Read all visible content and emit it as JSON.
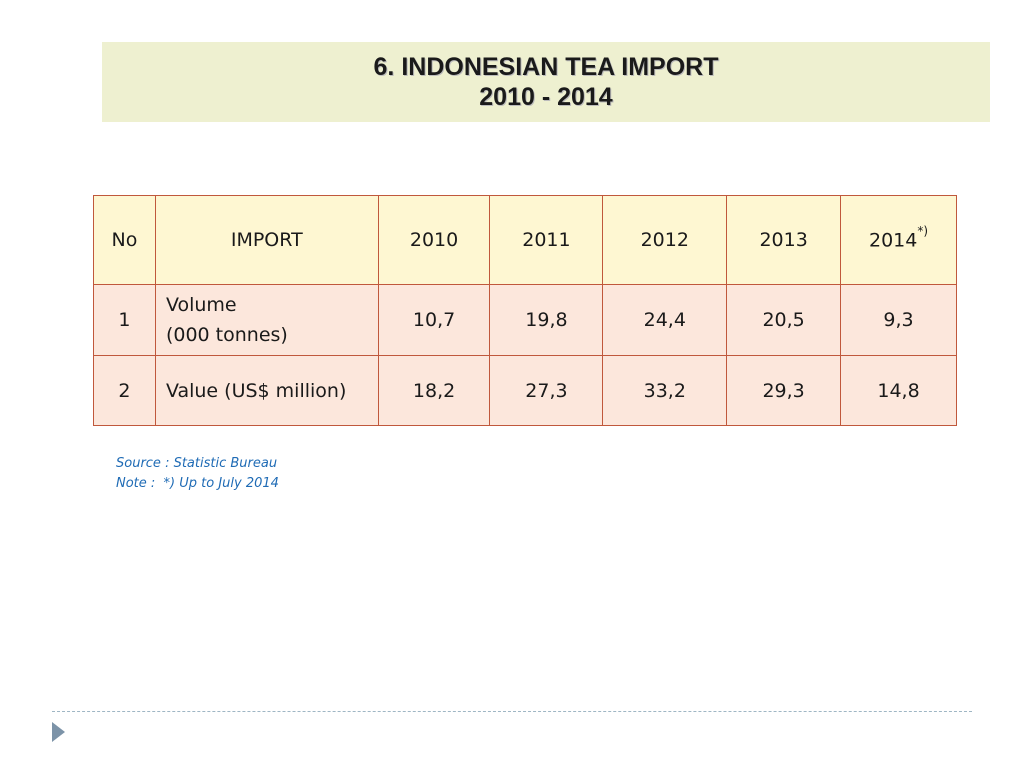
{
  "title": {
    "line1": "6. INDONESIAN TEA IMPORT",
    "line2": "2010 - 2014"
  },
  "table": {
    "headers": {
      "no": "No",
      "import": "IMPORT",
      "y2010": "2010",
      "y2011": "2011",
      "y2012": "2012",
      "y2013": "2013",
      "y2014": "2014",
      "y2014_note": "*)"
    },
    "rows": [
      {
        "no": "1",
        "label_line1": "Volume",
        "label_line2": "(000 tonnes)",
        "values": [
          "10,7",
          "19,8",
          "24,4",
          "20,5",
          "9,3"
        ]
      },
      {
        "no": "2",
        "label": "Value (US$ million)",
        "values": [
          "18,2",
          "27,3",
          "33,2",
          "29,3",
          "14,8"
        ]
      }
    ]
  },
  "footnotes": {
    "source": "Source : Statistic Bureau",
    "note": "Note :  *) Up to July 2014"
  },
  "colors": {
    "title_background": "#eef0d0",
    "header_background": "#fef7d2",
    "row_background": "#fce7dc",
    "table_border": "#c0583c",
    "footnote_text": "#1f6bb5"
  },
  "icons": {
    "nav": "triangle-right-icon"
  }
}
